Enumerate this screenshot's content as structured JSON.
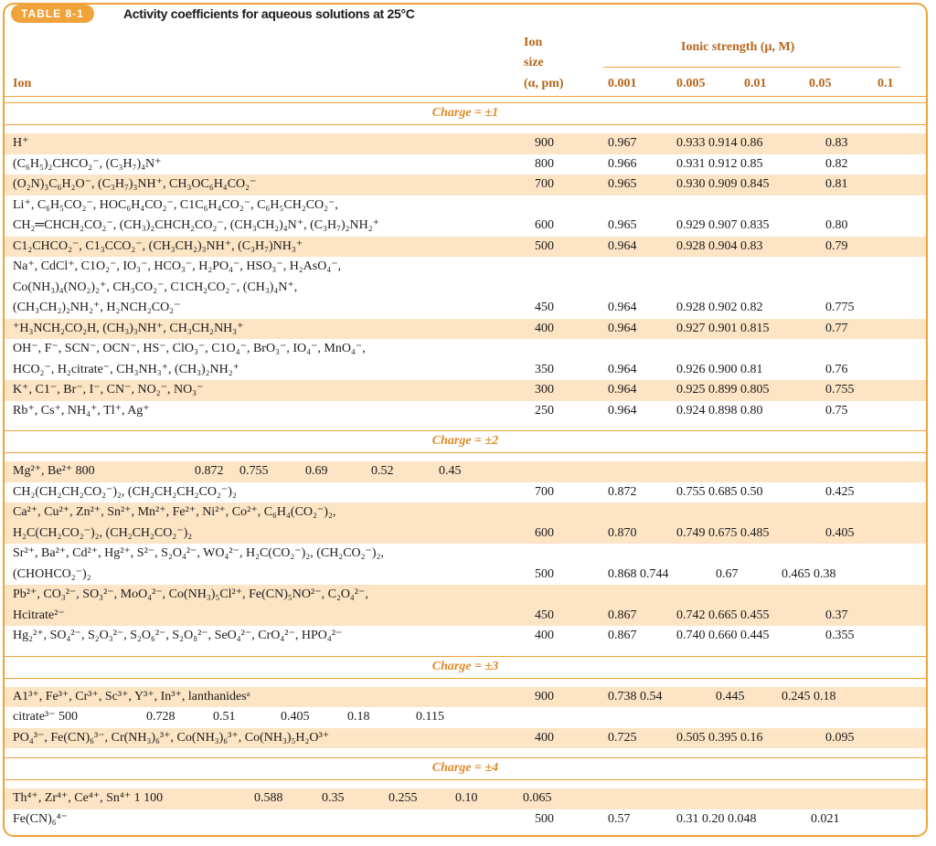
{
  "header": {
    "label": "TABLE 8-1",
    "title": "Activity coefficients for aqueous solutions at 25°C"
  },
  "columns": {
    "ion": "Ion",
    "size": [
      "Ion",
      "size",
      "(α, pm)"
    ],
    "ionic_strength": "Ionic strength (μ, M)",
    "strengths": [
      "0.001",
      "0.005",
      "0.01",
      "0.05",
      "0.1"
    ]
  },
  "sections": [
    {
      "heading": "Charge = ±1",
      "rows": [
        {
          "ion": [
            "H⁺"
          ],
          "size": "900",
          "values": [
            "0.967",
            "0.933 0.914 0.86",
            "0.83"
          ]
        },
        {
          "ion": [
            "(C₆H₅)₂CHCO₂⁻, (C₃H₇)₄N⁺"
          ],
          "size": "800",
          "values": [
            "0.966",
            "0.931 0.912 0.85",
            "0.82"
          ]
        },
        {
          "ion": [
            "(O₂N)₃C₆H₂O⁻, (C₃H₇)₃NH⁺, CH₃OC₆H₄CO₂⁻"
          ],
          "size": "700",
          "values": [
            "0.965",
            "0.930 0.909 0.845",
            "0.81"
          ]
        },
        {
          "ion": [
            "Li⁺, C₆H₅CO₂⁻, HOC₆H₄CO₂⁻, C1C₆H₄CO₂⁻, C₆H₅CH₂CO₂⁻,",
            "CH₂═CHCH₂CO₂⁻, (CH₃)₂CHCH₂CO₂⁻, (CH₃CH₂)₄N⁺, (C₃H₇)₂NH₂⁺"
          ],
          "size": "600",
          "values": [
            "0.965",
            "0.929 0.907 0.835",
            "0.80"
          ]
        },
        {
          "ion": [
            "C1₂CHCO₂⁻, C1₃CCO₂⁻, (CH₃CH₂)₃NH⁺, (C₃H₇)NH₃⁺"
          ],
          "size": "500",
          "values": [
            "0.964",
            "0.928 0.904 0.83",
            "0.79"
          ]
        },
        {
          "ion": [
            "Na⁺, CdCl⁺, C1O₂⁻, IO₃⁻, HCO₃⁻, H₂PO₄⁻, HSO₃⁻, H₂AsO₄⁻,",
            "Co(NH₃)₄(NO₂)₂⁺, CH₃CO₂⁻, C1CH₂CO₂⁻, (CH₃)₄N⁺,",
            "(CH₃CH₂)₂NH₂⁺, H₂NCH₂CO₂⁻"
          ],
          "size": "450",
          "values": [
            "0.964",
            "0.928 0.902 0.82",
            "0.775"
          ]
        },
        {
          "ion": [
            "⁺H₃NCH₂CO₂H, (CH₃)₃NH⁺, CH₃CH₂NH₃⁺"
          ],
          "size": "400",
          "values": [
            "0.964",
            "0.927 0.901 0.815",
            "0.77"
          ]
        },
        {
          "ion": [
            "OH⁻, F⁻, SCN⁻, OCN⁻, HS⁻, ClO₃⁻, C1O₄⁻, BrO₃⁻, IO₄⁻, MnO₄⁻,",
            "HCO₂⁻, H₂citrate⁻, CH₃NH₃⁺, (CH₃)₂NH₂⁺"
          ],
          "size": "350",
          "values": [
            "0.964",
            "0.926 0.900 0.81",
            "0.76"
          ]
        },
        {
          "ion": [
            "K⁺, C1⁻, Br⁻, I⁻, CN⁻, NO₂⁻, NO₃⁻"
          ],
          "size": "300",
          "values": [
            "0.964",
            "0.925 0.899 0.805",
            "0.755"
          ]
        },
        {
          "ion": [
            "Rb⁺, Cs⁺, NH₄⁺, Tl⁺, Ag⁺"
          ],
          "size": "250",
          "values": [
            "0.964",
            "0.924 0.898 0.80",
            "0.75"
          ]
        }
      ]
    },
    {
      "heading": "Charge = ±2",
      "rows": [
        {
          "cells": [
            "Mg²⁺, Be²⁺ 800",
            "0.872",
            "0.755",
            "0.69",
            "0.52",
            "0.45"
          ]
        },
        {
          "ion": [
            "CH₂(CH₂CH₂CO₂⁻)₂, (CH₂CH₂CH₂CO₂⁻)₂"
          ],
          "size": "700",
          "values": [
            "0.872",
            "0.755 0.685 0.50",
            "0.425"
          ]
        },
        {
          "ion": [
            "Ca²⁺, Cu²⁺, Zn²⁺, Sn²⁺, Mn²⁺, Fe²⁺, Ni²⁺, Co²⁺, C₆H₄(CO₂⁻)₂,",
            "H₂C(CH₂CO₂⁻)₂, (CH₂CH₂CO₂⁻)₂"
          ],
          "size": "600",
          "values": [
            "0.870",
            "0.749 0.675 0.485",
            "0.405"
          ]
        },
        {
          "ion": [
            "Sr²⁺, Ba²⁺, Cd²⁺, Hg²⁺, S²⁻, S₂O₄²⁻, WO₄²⁻, H₂C(CO₂⁻)₂, (CH₂CO₂⁻)₂,",
            "(CHOHCO₂⁻)₂"
          ],
          "size": "500",
          "values": [
            "0.868 0.744",
            "0.67",
            "0.465 0.38"
          ]
        },
        {
          "ion": [
            "Pb²⁺, CO₃²⁻, SO₃²⁻, MoO₄²⁻, Co(NH₃)₅Cl²⁺, Fe(CN)₅NO²⁻, C₂O₄²⁻,",
            "Hcitrate²⁻"
          ],
          "size": "450",
          "values": [
            "0.867",
            "0.742 0.665 0.455",
            "0.37"
          ]
        },
        {
          "ion": [
            "Hg₂²⁺, SO₄²⁻, S₂O₃²⁻, S₂O₆²⁻, S₂O₈²⁻, SeO₄²⁻, CrO₄²⁻, HPO₄²⁻"
          ],
          "size": "400",
          "values": [
            "0.867",
            "0.740 0.660 0.445",
            "0.355"
          ]
        }
      ]
    },
    {
      "heading": "Charge = ±3",
      "rows": [
        {
          "ion": [
            "A1³⁺, Fe³⁺, Cr³⁺, Sc³⁺, Y³⁺, In³⁺, lanthanidesᵃ"
          ],
          "size": "900",
          "values": [
            "0.738 0.54",
            "0.445",
            "0.245 0.18"
          ]
        },
        {
          "cells": [
            "citrate³⁻ 500",
            "0.728",
            "0.51",
            "0.405",
            "0.18",
            "0.115"
          ]
        },
        {
          "ion": [
            "PO₄³⁻, Fe(CN)₆³⁻, Cr(NH₃)₆³⁺, Co(NH₃)₆³⁺, Co(NH₃)₅H₂O³⁺"
          ],
          "size": "400",
          "values": [
            "0.725",
            "0.505 0.395 0.16",
            "0.095"
          ]
        }
      ]
    },
    {
      "heading": "Charge = ±4",
      "rows": [
        {
          "cells": [
            "Th⁴⁺, Zr⁴⁺, Ce⁴⁺, Sn⁴⁺ 1 100",
            "0.588",
            "0.35",
            "0.255",
            "0.10",
            "0.065"
          ]
        },
        {
          "ion": [
            "Fe(CN)₆⁴⁻"
          ],
          "size": "500",
          "values": [
            "0.57",
            "0.31 0.20 0.048",
            "0.021"
          ]
        }
      ]
    }
  ]
}
